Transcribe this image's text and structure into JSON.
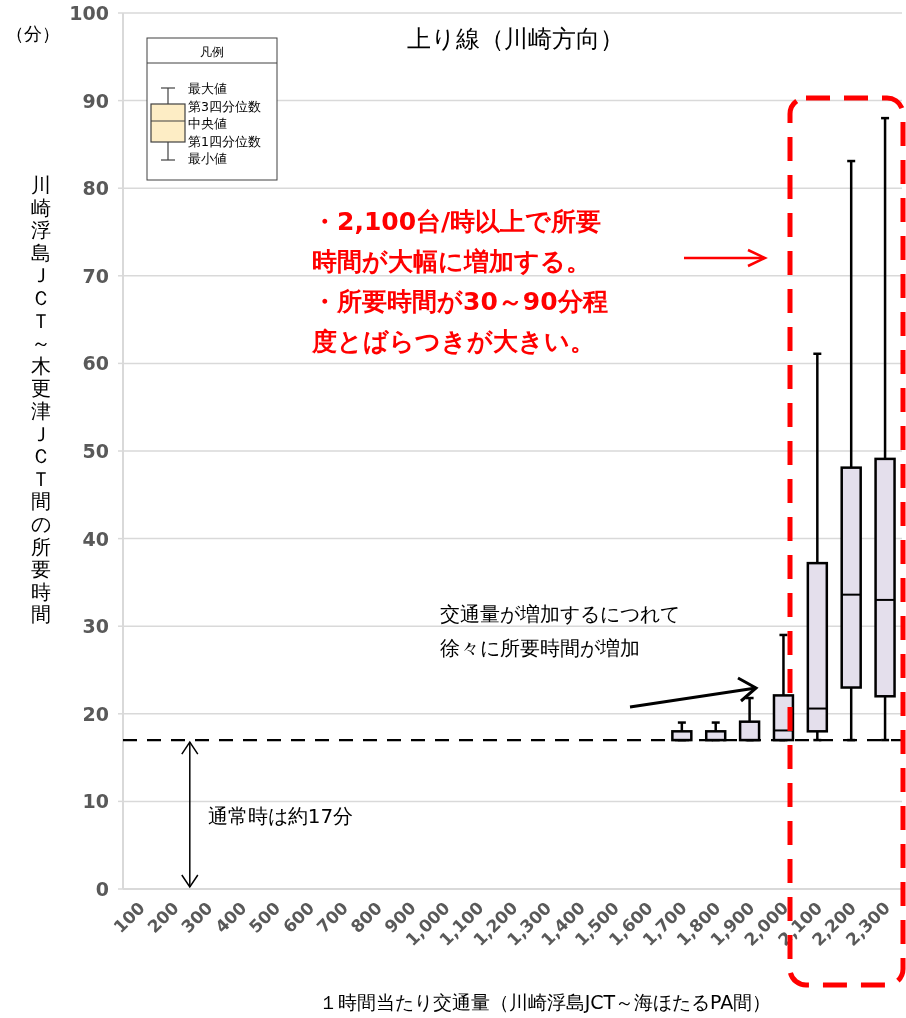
{
  "chart_data": {
    "type": "box",
    "title": "上り線（川崎方向）",
    "xlabel": "１時間当たり交通量（川崎浮島JCT～海ほたるPA間）",
    "ylabel": "川崎浮島ＪＣＴ～木更津ＪＣＴ間の所要時間",
    "legend_title": "凡例",
    "grid": "y",
    "categories": [
      "100",
      "200",
      "300",
      "400",
      "500",
      "600",
      "700",
      "800",
      "900",
      "1,000",
      "1,100",
      "1,200",
      "1,300",
      "1,400",
      "1,500",
      "1,600",
      "1,700",
      "1,800",
      "1,900",
      "2,000",
      "2,100",
      "2,200",
      "2,300"
    ],
    "ylim": [
      0,
      100
    ],
    "yticks": [
      0,
      10,
      20,
      30,
      40,
      50,
      60,
      70,
      80,
      90,
      100
    ],
    "color": "#e4dfec",
    "boxes": [
      null,
      null,
      null,
      null,
      null,
      null,
      null,
      null,
      null,
      null,
      null,
      null,
      null,
      null,
      null,
      null,
      {
        "low": 17,
        "q1": 17,
        "median": 17,
        "q3": 18,
        "high": 19
      },
      {
        "low": 17,
        "q1": 17,
        "median": 17,
        "q3": 18,
        "high": 19
      },
      {
        "low": 17,
        "q1": 17,
        "median": 17,
        "q3": 19.1,
        "high": 21.8
      },
      {
        "low": 17,
        "q1": 17,
        "median": 18.1,
        "q3": 22.1,
        "high": 29
      },
      {
        "low": 17,
        "q1": 18,
        "median": 20.6,
        "q3": 37.2,
        "high": 61.1
      },
      {
        "low": 17,
        "q1": 23,
        "median": 33.6,
        "q3": 48.1,
        "high": 83.1
      },
      {
        "low": 17,
        "q1": 22,
        "median": 33,
        "q3": 49.1,
        "high": 88
      }
    ],
    "ref_lines": [
      {
        "axis": "y",
        "value": 17,
        "color": "#000000",
        "line_style": "dashed"
      }
    ],
    "annotations": [
      "最大値",
      "第3四分位数",
      "中央値",
      "第1四分位数",
      "最小値",
      "（分）",
      "・2,100台/時以上で所要時間が大幅に増加する。",
      "・所要時間が30～90分程度とばらつきが大きい。",
      "交通量が増加するにつれて徐々に所要時間が増加",
      "通常時は約17分"
    ]
  }
}
